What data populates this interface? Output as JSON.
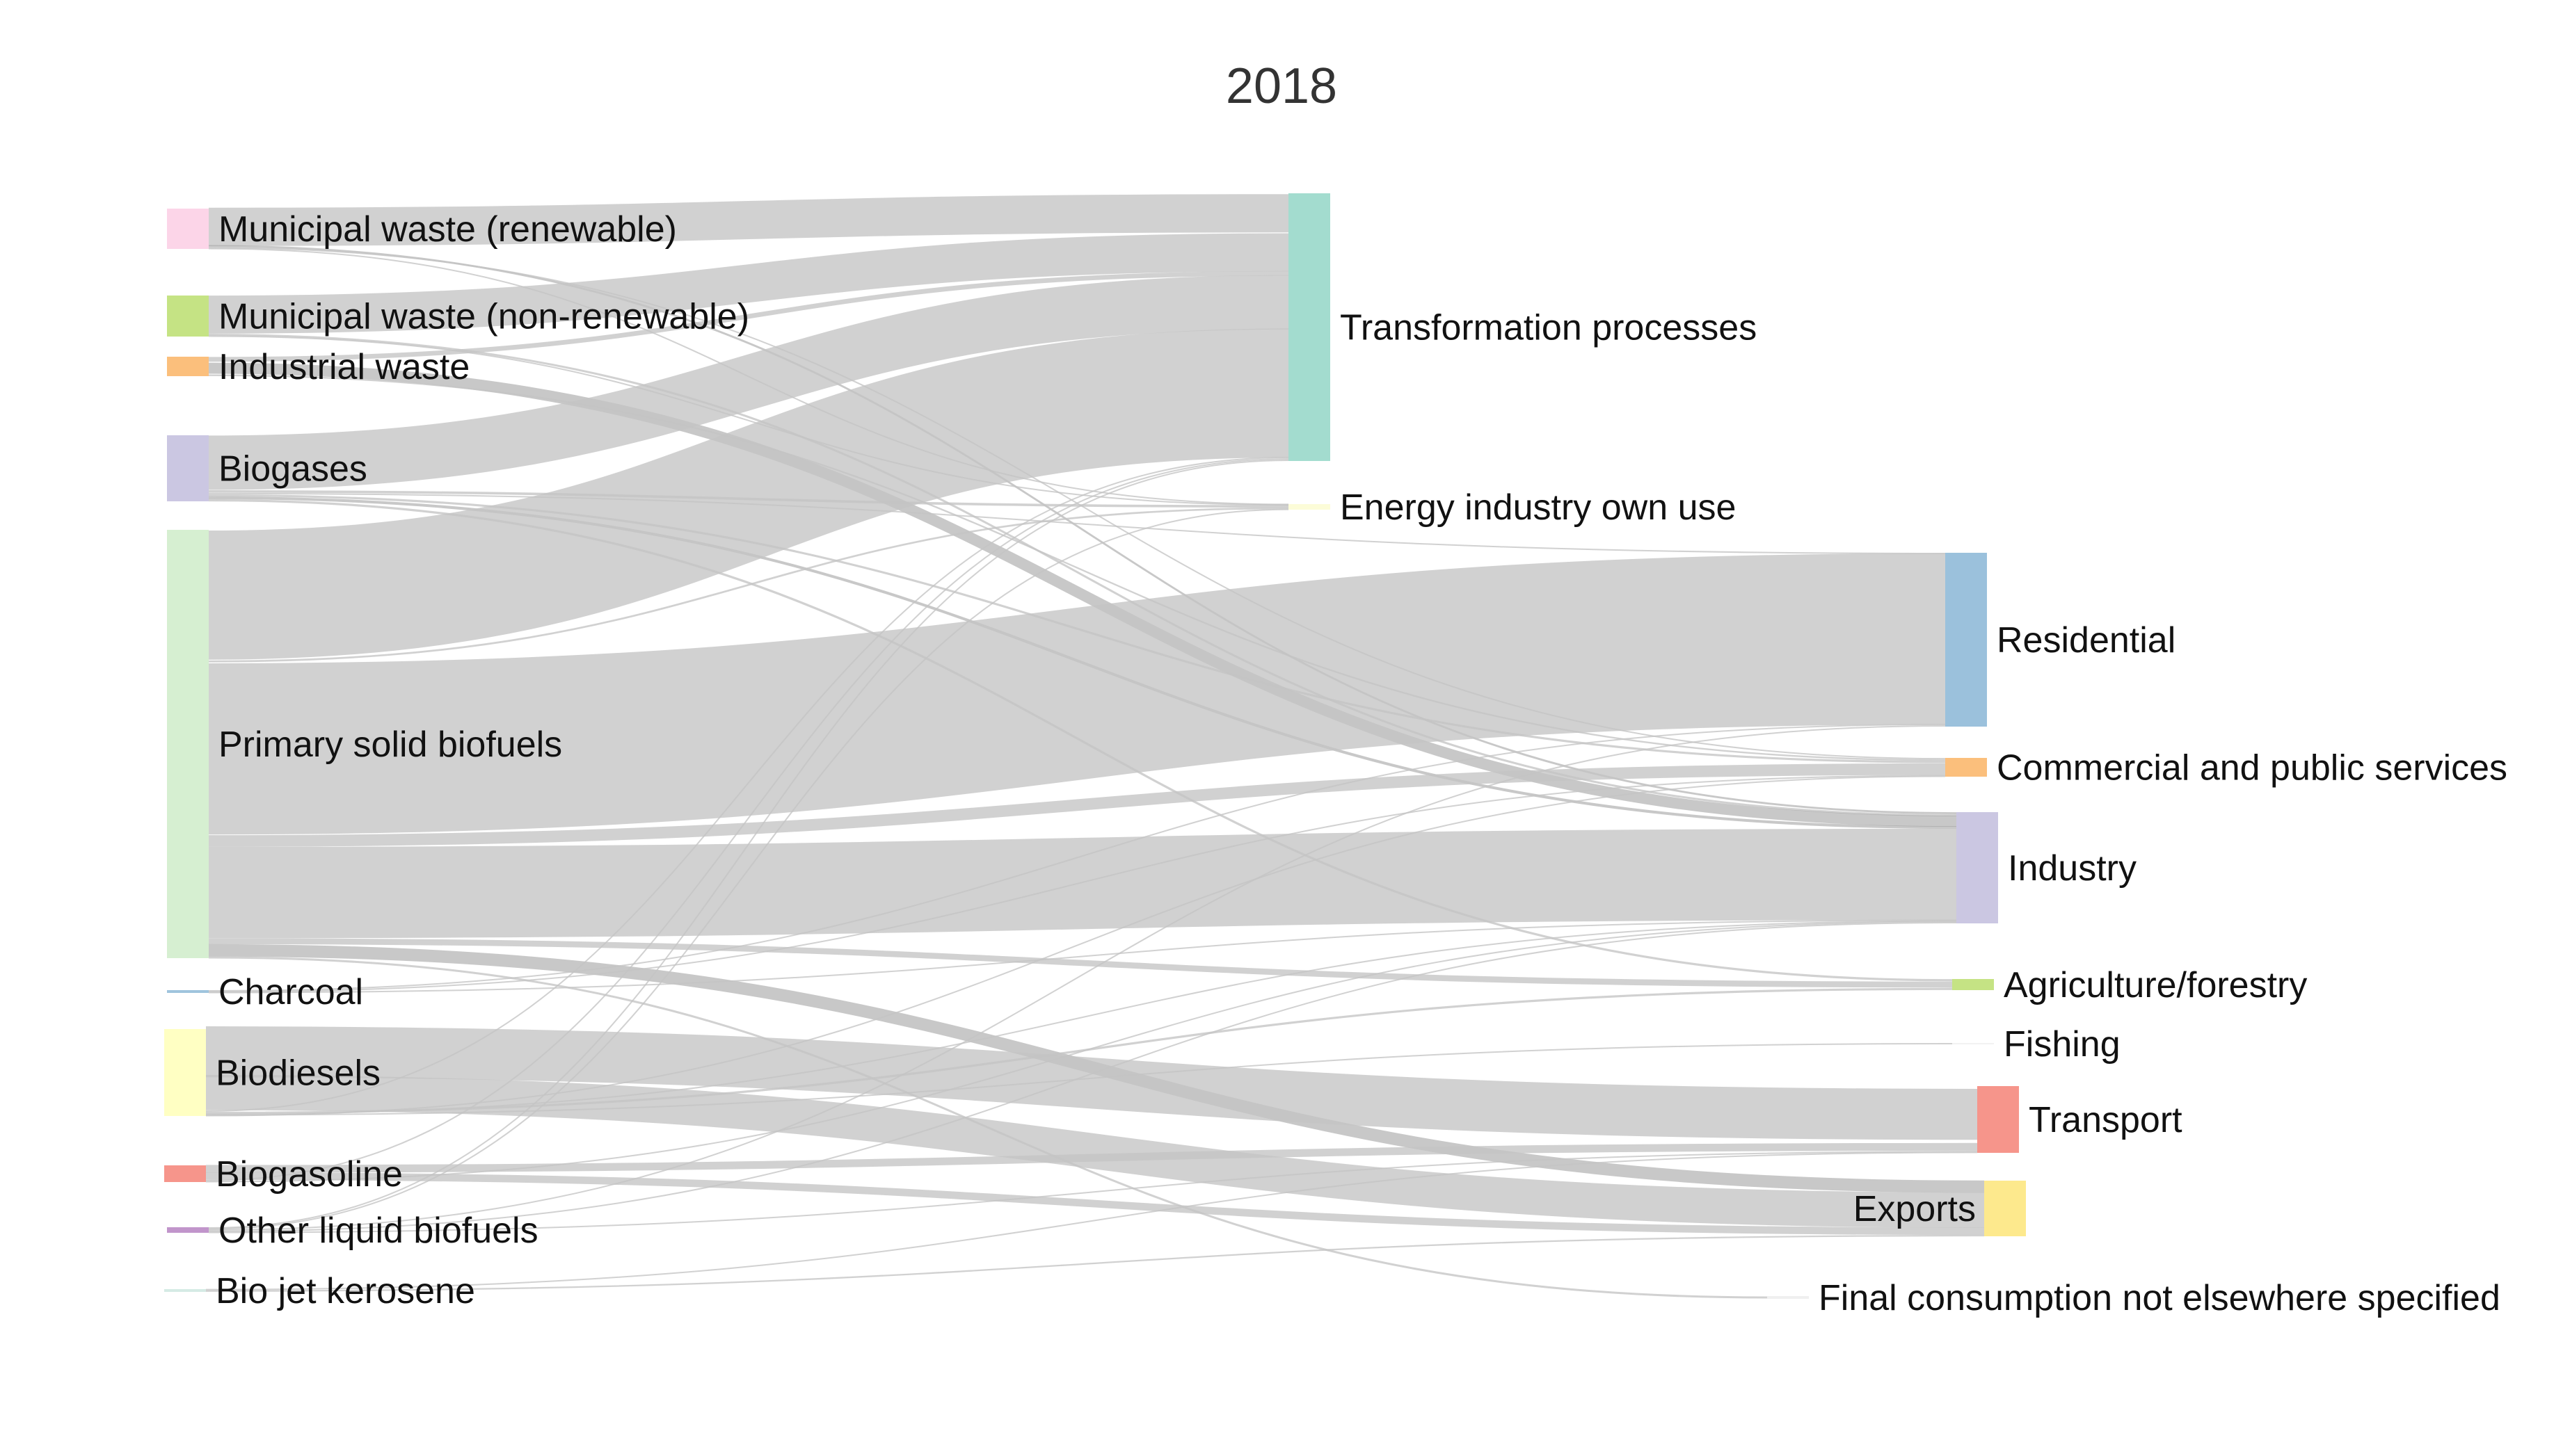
{
  "title": "2018",
  "sources": [
    {
      "id": "msw_r",
      "label": "Municipal waste (renewable)",
      "color": "#fcd5e8"
    },
    {
      "id": "msw_nr",
      "label": "Municipal waste (non-renewable)",
      "color": "#c5e384"
    },
    {
      "id": "ind",
      "label": "Industrial waste",
      "color": "#fbbf7c"
    },
    {
      "id": "biogas",
      "label": "Biogases",
      "color": "#cbc7e2"
    },
    {
      "id": "psb",
      "label": "Primary solid biofuels",
      "color": "#d6efd1"
    },
    {
      "id": "charcoal",
      "label": "Charcoal",
      "color": "#9fc4dd"
    },
    {
      "id": "biodiesel",
      "label": "Biodiesels",
      "color": "#ffffc3"
    },
    {
      "id": "biogasoline",
      "label": "Biogasoline",
      "color": "#f6958b"
    },
    {
      "id": "olb",
      "label": "Other liquid biofuels",
      "color": "#c195cb"
    },
    {
      "id": "bjk",
      "label": "Bio jet kerosene",
      "color": "#d5ebe5"
    }
  ],
  "middle": [
    {
      "id": "tp",
      "label": "Transformation processes",
      "color": "#a3dccf"
    },
    {
      "id": "eiou",
      "label": "Energy industry own use",
      "color": "#fcfcd8"
    }
  ],
  "sinks": [
    {
      "id": "res",
      "label": "Residential",
      "color": "#9bc1dc"
    },
    {
      "id": "com",
      "label": "Commercial and public services",
      "color": "#fbbf7c"
    },
    {
      "id": "industry",
      "label": "Industry",
      "color": "#cbc7e2"
    },
    {
      "id": "agri",
      "label": "Agriculture/forestry",
      "color": "#c5e384"
    },
    {
      "id": "fish",
      "label": "Fishing",
      "color": "#f2f2f2"
    },
    {
      "id": "transport",
      "label": "Transport",
      "color": "#f6958b"
    },
    {
      "id": "exports",
      "label": "Exports",
      "color": "#fde98d"
    },
    {
      "id": "fcnes",
      "label": "Final consumption not elsewhere specified",
      "color": "#f0f0f0"
    }
  ],
  "link_color": "#c4c4c4"
}
